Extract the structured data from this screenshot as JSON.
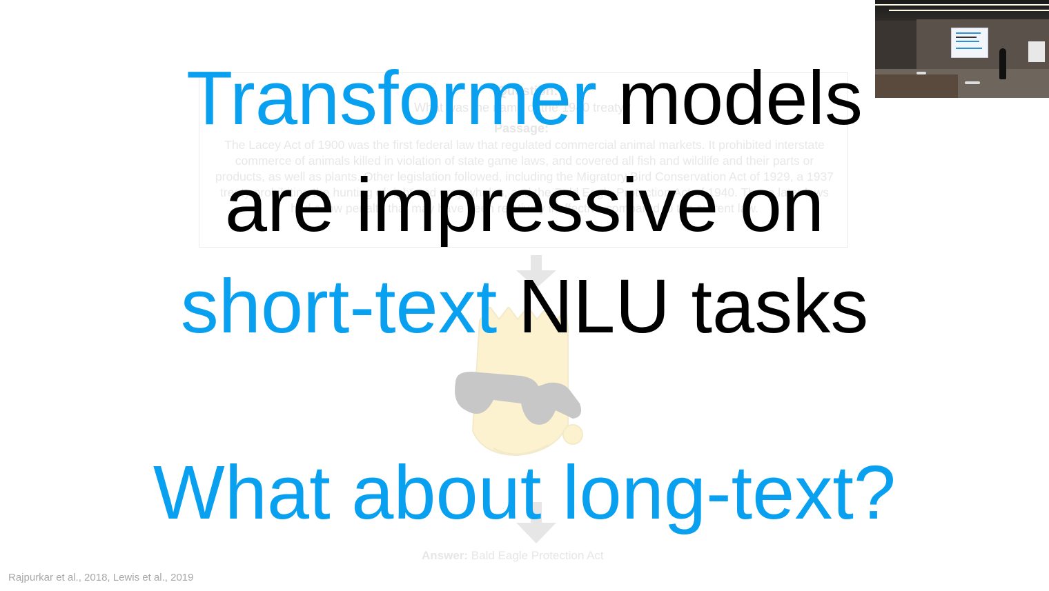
{
  "background_slide": {
    "question_heading": "Question:",
    "question_text": "What was the name of the 1940 treaty?",
    "passage_heading": "Passage:",
    "passage_text": "The Lacey Act of 1900 was the first federal law that regulated commercial animal markets. It prohibited interstate commerce of animals killed in violation of state game laws, and covered all fish and wildlife and their parts or products, as well as plants. Other legislation followed, including the Migratory Bird Conservation Act of 1929, a 1937 treaty prohibiting the hunting of right and gray whales, and the Bald Eagle Protection Act of 1940. These later laws had a low penalty that may have been relatively ineffective compared to the current law.",
    "answer_label": "Answer:",
    "answer_text": " Bald Eagle Protection Act"
  },
  "headline": {
    "line1_blue": "Transformer",
    "line1_black": " models",
    "line2_black": "are impressive on",
    "line3_blue": "short-text",
    "line3_black": " NLU tasks",
    "line4_blue": "What about long-text?"
  },
  "citation": "Rajpurkar et al., 2018, Lewis et al., 2019",
  "colors": {
    "accent_blue": "#0aa0f0",
    "text_black": "#000000",
    "faded_gray": "#e3e3e3"
  },
  "webcam": {
    "icon": "presenter-video-feed"
  }
}
